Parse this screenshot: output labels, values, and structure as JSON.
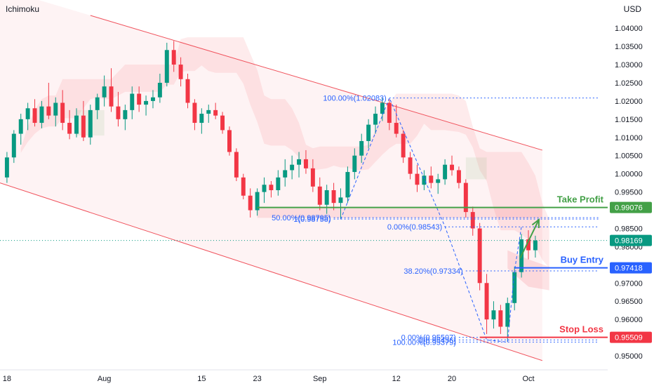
{
  "header": {
    "indicator": "Ichimoku",
    "currency": "USD"
  },
  "chart_data": {
    "type": "candlestick",
    "grid": false,
    "y_axis": {
      "range": [
        0.9475,
        1.0435
      ],
      "ticks": [
        "1.04000",
        "1.03500",
        "1.03000",
        "1.02500",
        "1.02000",
        "1.01500",
        "1.01000",
        "1.00500",
        "1.00000",
        "0.99500",
        "0.99000",
        "0.98500",
        "0.98000",
        "0.97500",
        "0.97000",
        "0.96500",
        "0.96000",
        "0.95500",
        "0.95000"
      ]
    },
    "x_axis": {
      "range": [
        -1,
        86
      ],
      "labels": [
        {
          "text": "18",
          "day": 0
        },
        {
          "text": "Aug",
          "day": 14
        },
        {
          "text": "15",
          "day": 28
        },
        {
          "text": "23",
          "day": 36
        },
        {
          "text": "Sep",
          "day": 45
        },
        {
          "text": "12",
          "day": 56
        },
        {
          "text": "20",
          "day": 64
        },
        {
          "text": "Oct",
          "day": 75
        }
      ]
    },
    "price_tags": [
      {
        "value": 0.99076,
        "color": "#43a047"
      },
      {
        "value": 0.98169,
        "color": "#089981"
      },
      {
        "value": 0.97418,
        "color": "#2962ff"
      },
      {
        "value": 0.95509,
        "color": "#f23645"
      }
    ],
    "annotations": {
      "take_profit": {
        "label": "Take Profit",
        "price": 0.99076,
        "color": "#43a047"
      },
      "buy_entry": {
        "label": "Buy Entry",
        "price": 0.97418,
        "color": "#2962ff"
      },
      "stop_loss": {
        "label": "Stop Loss",
        "price": 0.95509,
        "color": "#f23645"
      }
    },
    "fib_labels": [
      {
        "text": "100.00%(1.02083)",
        "price": 1.02083
      },
      {
        "text": "50.00%(0.98795)",
        "price": 0.98795
      },
      {
        "text": "1(0.98758)",
        "price": 0.98758
      },
      {
        "text": "0.00%(0.98543)",
        "price": 0.98543
      },
      {
        "text": "38.20%(0.97334)",
        "price": 0.97334
      },
      {
        "text": "0.00%(0.95507)",
        "price": 0.95507
      },
      {
        "text": "0(0.95436)",
        "price": 0.95436
      },
      {
        "text": "100.00%(0.95379)",
        "price": 0.95379
      }
    ],
    "channel": {
      "upper": [
        [
          12,
          1.0435
        ],
        [
          77,
          1.0065
        ]
      ],
      "lower": [
        [
          -1,
          0.9975
        ],
        [
          77,
          0.9487
        ]
      ]
    },
    "zigzag": [
      [
        48,
        0.9875
      ],
      [
        55,
        1.02083
      ],
      [
        63,
        0.9855
      ],
      [
        69,
        0.95436
      ],
      [
        72,
        0.95379
      ],
      [
        73,
        0.9733
      ],
      [
        74,
        0.9855
      ]
    ],
    "forecast_arrow": [
      [
        73.8,
        0.9768
      ],
      [
        76.5,
        0.9874
      ]
    ],
    "support_zone": [
      0.9879,
      0.9905
    ],
    "candles": [
      [
        0.999,
        1.006,
        0.9975,
        1.0045
      ],
      [
        1.0045,
        1.012,
        1.003,
        1.011
      ],
      [
        1.011,
        1.0165,
        1.008,
        1.015
      ],
      [
        1.015,
        1.0195,
        1.012,
        1.018
      ],
      [
        1.018,
        1.0205,
        1.013,
        1.014
      ],
      [
        1.014,
        1.02,
        1.0125,
        1.0185
      ],
      [
        1.0185,
        1.025,
        1.015,
        1.016
      ],
      [
        1.016,
        1.021,
        1.013,
        1.0195
      ],
      [
        1.0195,
        1.023,
        1.012,
        1.014
      ],
      [
        1.014,
        1.0175,
        1.0095,
        1.011
      ],
      [
        1.011,
        1.018,
        1.01,
        1.016
      ],
      [
        1.016,
        1.02,
        1.009,
        1.01
      ],
      [
        1.01,
        1.019,
        1.008,
        1.0175
      ],
      [
        1.0175,
        1.022,
        1.015,
        1.021
      ],
      [
        1.021,
        1.027,
        1.0185,
        1.024
      ],
      [
        1.024,
        1.029,
        1.017,
        1.0185
      ],
      [
        1.0185,
        1.0225,
        1.013,
        1.015
      ],
      [
        1.015,
        1.019,
        1.012,
        1.0175
      ],
      [
        1.0175,
        1.024,
        1.015,
        1.022
      ],
      [
        1.022,
        1.024,
        1.017,
        1.019
      ],
      [
        1.019,
        1.0215,
        1.016,
        1.02
      ],
      [
        1.02,
        1.023,
        1.018,
        1.021
      ],
      [
        1.021,
        1.0275,
        1.0195,
        1.025
      ],
      [
        1.025,
        1.036,
        1.024,
        1.034
      ],
      [
        1.034,
        1.0365,
        1.028,
        1.03
      ],
      [
        1.03,
        1.032,
        1.024,
        1.026
      ],
      [
        1.026,
        1.0275,
        1.018,
        1.0195
      ],
      [
        1.0195,
        1.0205,
        1.012,
        1.014
      ],
      [
        1.014,
        1.018,
        1.011,
        1.0165
      ],
      [
        1.0165,
        1.019,
        1.014,
        1.0175
      ],
      [
        1.0175,
        1.0195,
        1.015,
        1.016
      ],
      [
        1.016,
        1.017,
        1.011,
        1.012
      ],
      [
        1.012,
        1.013,
        1.005,
        1.006
      ],
      [
        1.006,
        1.007,
        0.998,
        0.999
      ],
      [
        0.999,
        1.0,
        0.993,
        0.994
      ],
      [
        0.994,
        0.996,
        0.988,
        0.99
      ],
      [
        0.99,
        0.996,
        0.9885,
        0.995
      ],
      [
        0.995,
        0.999,
        0.992,
        0.997
      ],
      [
        0.997,
        0.998,
        0.9935,
        0.9955
      ],
      [
        0.9955,
        1.001,
        0.994,
        0.999
      ],
      [
        0.999,
        1.004,
        0.9965,
        1.001
      ],
      [
        1.001,
        1.005,
        0.9985,
        1.0025
      ],
      [
        1.0025,
        1.006,
        0.999,
        1.004
      ],
      [
        1.004,
        1.0065,
        1.0,
        1.0015
      ],
      [
        1.0015,
        1.004,
        0.995,
        0.9965
      ],
      [
        0.9965,
        0.999,
        0.99,
        0.9915
      ],
      [
        0.9915,
        0.997,
        0.989,
        0.9955
      ],
      [
        0.9955,
        0.9975,
        0.99,
        0.992
      ],
      [
        0.992,
        0.996,
        0.9875,
        0.9935
      ],
      [
        0.9935,
        1.002,
        0.992,
        1.0005
      ],
      [
        1.0005,
        1.007,
        0.9985,
        1.005
      ],
      [
        1.005,
        1.011,
        1.003,
        1.009
      ],
      [
        1.009,
        1.015,
        1.007,
        1.0135
      ],
      [
        1.0135,
        1.0185,
        1.011,
        1.0165
      ],
      [
        1.0165,
        1.021,
        1.0145,
        1.0195
      ],
      [
        1.0195,
        1.0205,
        1.012,
        1.014
      ],
      [
        1.014,
        1.019,
        1.01,
        1.011
      ],
      [
        1.011,
        1.012,
        1.003,
        1.0045
      ],
      [
        1.0045,
        1.006,
        0.9985,
        1.0
      ],
      [
        1.0,
        1.0025,
        0.995,
        0.997
      ],
      [
        0.997,
        1.001,
        0.9955,
        0.9995
      ],
      [
        0.9995,
        1.002,
        0.996,
        0.9975
      ],
      [
        0.9975,
        1.0,
        0.9945,
        0.9985
      ],
      [
        0.9985,
        1.004,
        0.997,
        1.0025
      ],
      [
        1.0025,
        1.005,
        0.9995,
        1.001
      ],
      [
        1.001,
        1.002,
        0.996,
        0.9975
      ],
      [
        0.9975,
        0.9985,
        0.988,
        0.9895
      ],
      [
        0.9895,
        0.991,
        0.983,
        0.985
      ],
      [
        0.985,
        0.9865,
        0.968,
        0.97
      ],
      [
        0.97,
        0.9725,
        0.956,
        0.96
      ],
      [
        0.96,
        0.965,
        0.9575,
        0.9625
      ],
      [
        0.9625,
        0.964,
        0.956,
        0.958
      ],
      [
        0.958,
        0.966,
        0.9538,
        0.9645
      ],
      [
        0.9645,
        0.9745,
        0.9625,
        0.973
      ],
      [
        0.973,
        0.9835,
        0.9715,
        0.982
      ],
      [
        0.982,
        0.9845,
        0.9765,
        0.979
      ],
      [
        0.979,
        0.983,
        0.977,
        0.9817
      ]
    ]
  }
}
